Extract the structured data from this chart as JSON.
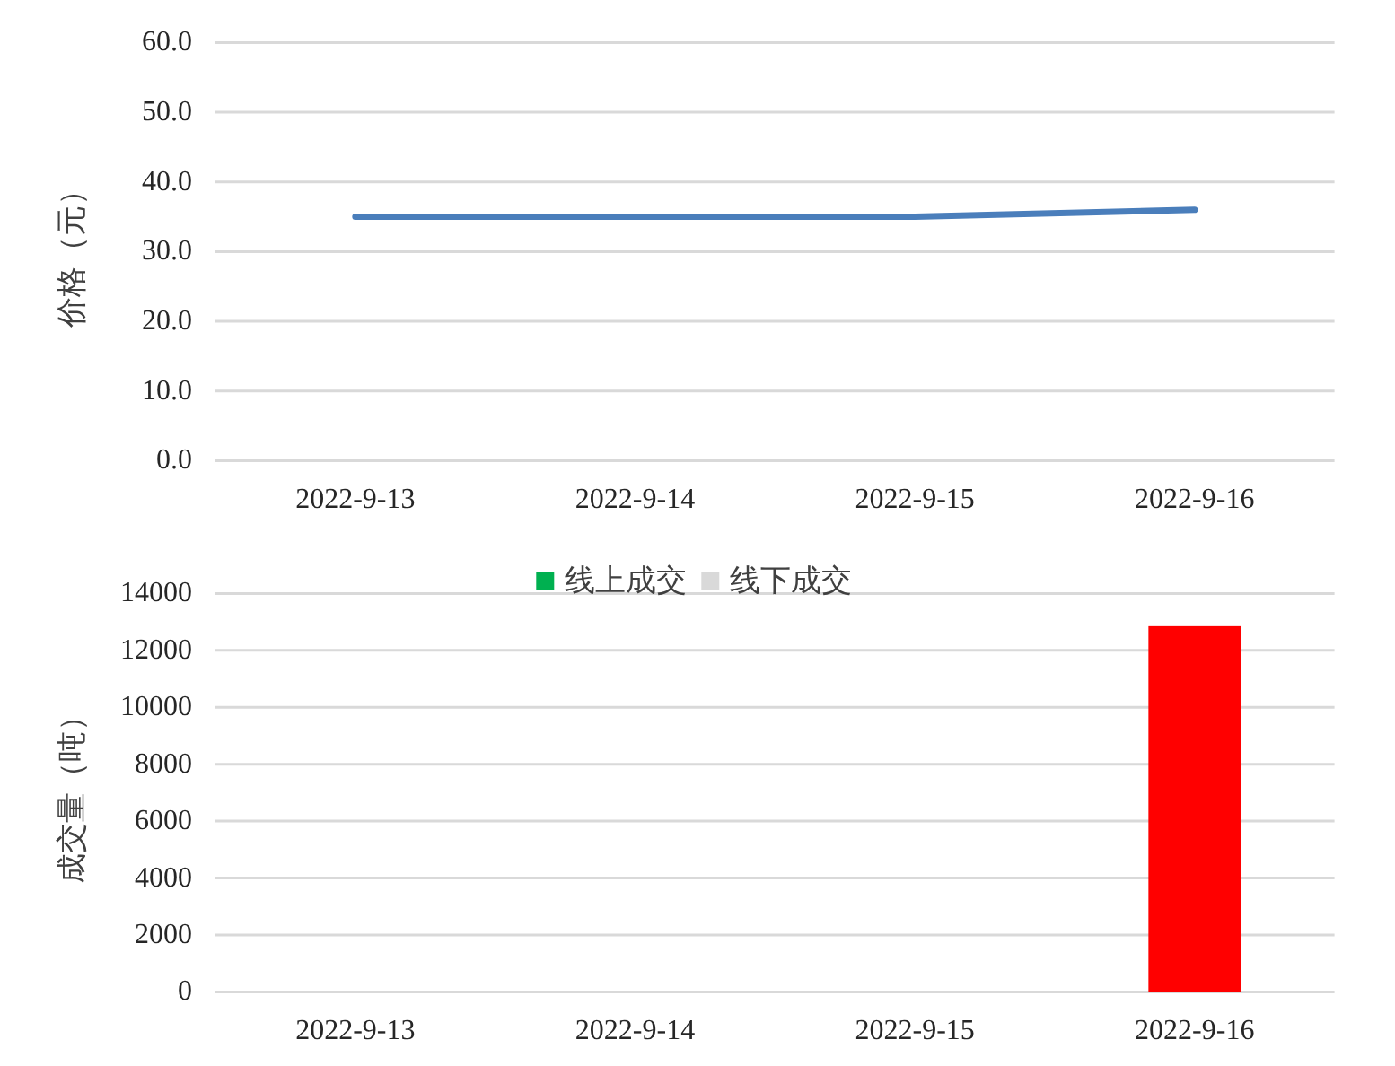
{
  "chart_data": [
    {
      "type": "line",
      "ylabel": "价格（元）",
      "categories": [
        "2022-9-13",
        "2022-9-14",
        "2022-9-15",
        "2022-9-16"
      ],
      "series": [
        {
          "color": "#4a7ebb",
          "values": [
            35,
            35,
            35,
            36
          ]
        }
      ],
      "ylim": [
        0,
        60
      ],
      "yticks": [
        {
          "value": 0,
          "label": "0.0"
        },
        {
          "value": 10,
          "label": "10.0"
        },
        {
          "value": 20,
          "label": "20.0"
        },
        {
          "value": 30,
          "label": "30.0"
        },
        {
          "value": 40,
          "label": "40.0"
        },
        {
          "value": 50,
          "label": "50.0"
        },
        {
          "value": 60,
          "label": "60.0"
        }
      ],
      "grid": "y"
    },
    {
      "type": "bar",
      "ylabel": "成交量（吨）",
      "categories": [
        "2022-9-13",
        "2022-9-14",
        "2022-9-15",
        "2022-9-16"
      ],
      "stacked": true,
      "series": [
        {
          "name": "线上成交",
          "color": "#00b050",
          "colors": [
            null,
            null,
            null,
            "#ff0000"
          ],
          "values": [
            null,
            null,
            null,
            12850
          ]
        },
        {
          "name": "线下成交",
          "color": "#d9d9d9",
          "values": [
            null,
            null,
            null,
            null
          ]
        }
      ],
      "ylim": [
        0,
        14000
      ],
      "yticks": [
        0,
        2000,
        4000,
        6000,
        8000,
        10000,
        12000,
        14000
      ],
      "grid": "y",
      "legend": "top"
    }
  ]
}
